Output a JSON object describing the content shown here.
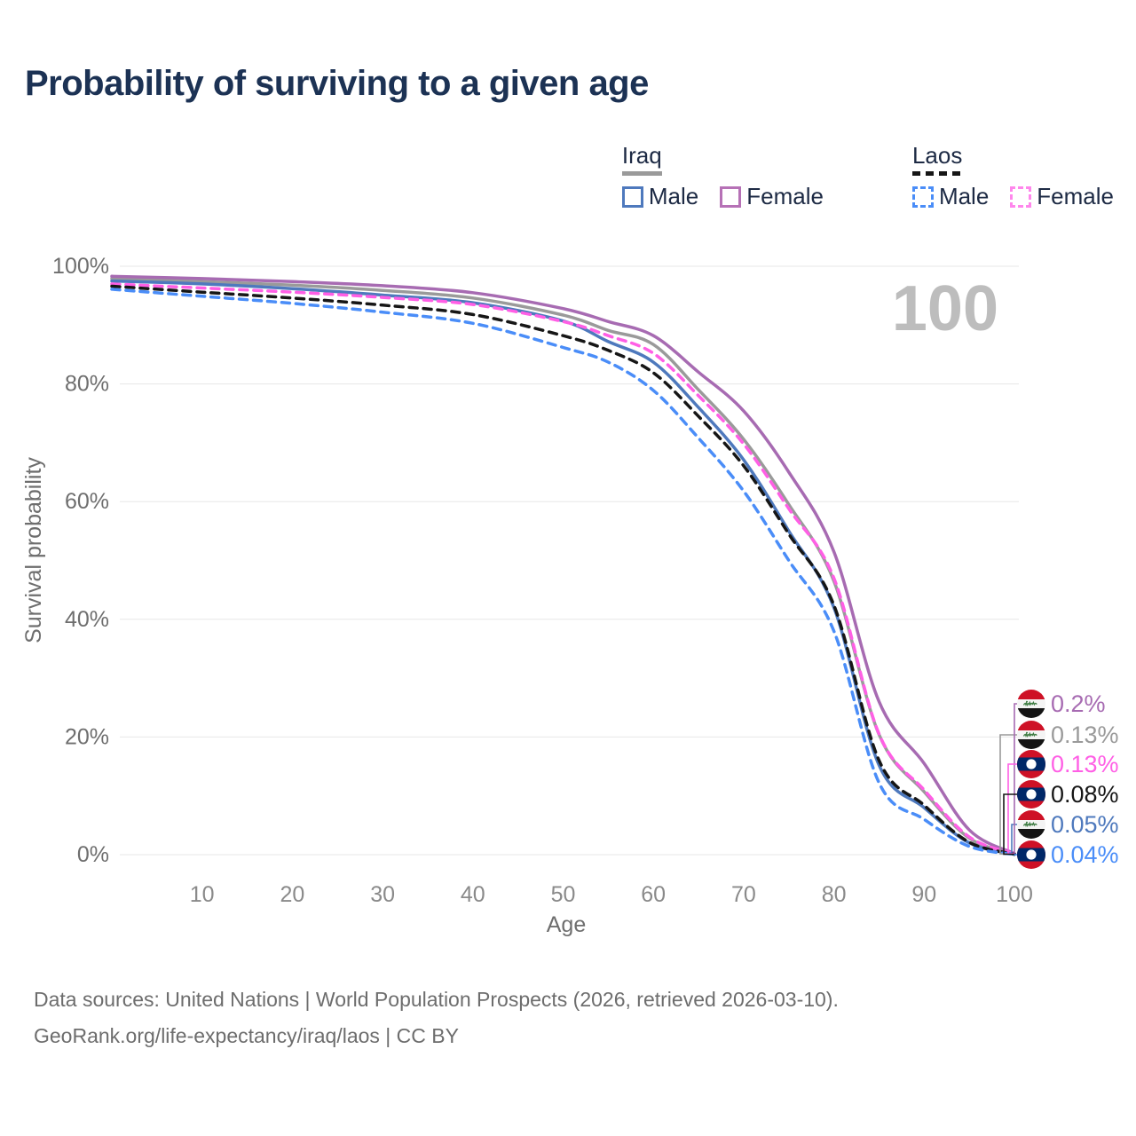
{
  "page": {
    "title": "Probability of surviving to a given age"
  },
  "legend": {
    "groups": [
      {
        "country": "Iraq",
        "line_style": "solid-gray",
        "items": [
          {
            "label": "Male"
          },
          {
            "label": "Female"
          }
        ]
      },
      {
        "country": "Laos",
        "line_style": "dashed-black",
        "items": [
          {
            "label": "Male"
          },
          {
            "label": "Female"
          }
        ]
      }
    ]
  },
  "chart_data": {
    "type": "line",
    "title": "Probability of surviving to a given age",
    "xlabel": "Age",
    "ylabel": "Survival probability",
    "watermark": "100",
    "grid": "horizontal",
    "xlim": [
      0,
      100
    ],
    "ylim": [
      0,
      100
    ],
    "x_ticks": [
      10,
      20,
      30,
      40,
      50,
      60,
      70,
      80,
      90,
      100
    ],
    "y_ticks": [
      {
        "label": "0%",
        "value": 0
      },
      {
        "label": "20%",
        "value": 20
      },
      {
        "label": "40%",
        "value": 40
      },
      {
        "label": "60%",
        "value": 60
      },
      {
        "label": "80%",
        "value": 80
      },
      {
        "label": "100%",
        "value": 100
      }
    ],
    "x": [
      0,
      10,
      20,
      30,
      40,
      50,
      55,
      60,
      65,
      70,
      75,
      80,
      85,
      90,
      95,
      100
    ],
    "series": [
      {
        "name": "Iraq All",
        "country": "Iraq",
        "sex": "All",
        "color": "#9a9a9a",
        "dash": false,
        "end_label": "0.13%",
        "label_slot": 1,
        "values": [
          97.9,
          97.4,
          96.8,
          95.9,
          94.6,
          91.7,
          89.1,
          86.7,
          79.0,
          70.6,
          59.5,
          46.5,
          20.4,
          10.7,
          2.8,
          0.13
        ]
      },
      {
        "name": "Iraq Male",
        "country": "Iraq",
        "sex": "Male",
        "color": "#4e79bd",
        "dash": false,
        "end_label": "0.05%",
        "label_slot": 4,
        "values": [
          97.5,
          97.0,
          96.2,
          95.1,
          93.8,
          90.7,
          87.2,
          83.7,
          76.0,
          67.1,
          55.0,
          42.0,
          15.2,
          8.0,
          2.0,
          0.05
        ]
      },
      {
        "name": "Iraq Female",
        "country": "Iraq",
        "sex": "Female",
        "color": "#a76bb2",
        "dash": false,
        "end_label": "0.2%",
        "label_slot": 0,
        "values": [
          98.3,
          97.9,
          97.4,
          96.7,
          95.5,
          92.8,
          90.6,
          88.2,
          82.0,
          75.4,
          65.0,
          51.5,
          26.0,
          15.5,
          4.2,
          0.2
        ]
      },
      {
        "name": "Laos Female",
        "country": "Laos",
        "sex": "Female",
        "color": "#ff5fe5",
        "dash": true,
        "end_label": "0.13%",
        "label_slot": 2,
        "values": [
          97.0,
          96.3,
          95.6,
          94.7,
          93.5,
          90.6,
          88.2,
          85.2,
          78.0,
          69.8,
          58.8,
          47.0,
          20.5,
          11.0,
          3.0,
          0.13
        ]
      },
      {
        "name": "Laos All",
        "country": "Laos",
        "sex": "All",
        "color": "#161616",
        "dash": true,
        "end_label": "0.08%",
        "label_slot": 3,
        "values": [
          96.6,
          95.6,
          94.6,
          93.4,
          91.8,
          88.2,
          85.7,
          81.9,
          74.5,
          66.1,
          54.5,
          42.4,
          16.0,
          8.4,
          2.1,
          0.08
        ]
      },
      {
        "name": "Laos Male",
        "country": "Laos",
        "sex": "Male",
        "color": "#4a8df8",
        "dash": true,
        "end_label": "0.04%",
        "label_slot": 5,
        "values": [
          96.1,
          94.9,
          93.7,
          92.2,
          90.3,
          86.2,
          83.7,
          78.9,
          70.8,
          61.8,
          50.0,
          38.0,
          12.2,
          6.0,
          1.4,
          0.04
        ]
      }
    ]
  },
  "footer": {
    "line1": "Data sources: United Nations | World Population Prospects (2026, retrieved 2026-03-10).",
    "line2": "GeoRank.org/life-expectancy/iraq/laos | CC BY"
  }
}
